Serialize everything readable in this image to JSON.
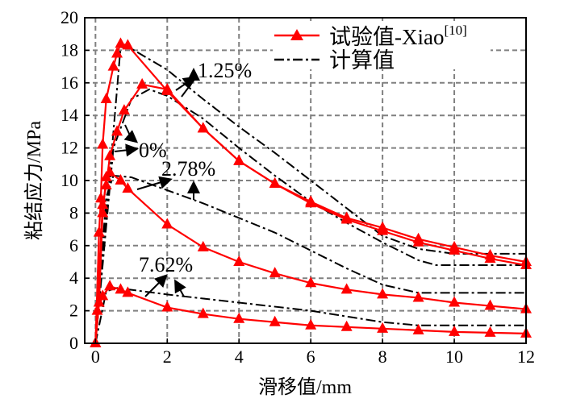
{
  "chart_data": {
    "type": "line",
    "xlabel": "滑移值/mm",
    "ylabel": "粘结应力/MPa",
    "xlim": [
      -0.3,
      12
    ],
    "ylim": [
      0,
      20
    ],
    "xticks": [
      0,
      2,
      4,
      6,
      8,
      10,
      12
    ],
    "yticks": [
      0,
      2,
      4,
      6,
      8,
      10,
      12,
      14,
      16,
      18,
      20
    ],
    "grid": true,
    "legend_position": "top-right",
    "legend": [
      {
        "label": "试验值-Xiao",
        "sup": "[10]",
        "style": "red-line-triangle"
      },
      {
        "label": "计算值",
        "style": "black-dashdot"
      }
    ],
    "colors": {
      "experimental": "#ff0000",
      "calculated": "#000000",
      "grid": "#808080"
    },
    "annotations": [
      "1.25%",
      "0%",
      "2.78%",
      "7.62%"
    ],
    "series": [
      {
        "name": "试验值 A",
        "kind": "experimental",
        "points": [
          [
            0,
            0
          ],
          [
            0.1,
            6.8
          ],
          [
            0.15,
            8.9
          ],
          [
            0.2,
            12.2
          ],
          [
            0.3,
            15
          ],
          [
            0.5,
            17
          ],
          [
            0.6,
            17.8
          ],
          [
            0.7,
            18.4
          ],
          [
            0.9,
            18.3
          ],
          [
            2,
            15.5
          ],
          [
            3,
            13.2
          ],
          [
            4,
            11.2
          ],
          [
            5,
            9.8
          ],
          [
            6,
            8.6
          ],
          [
            7,
            7.6
          ],
          [
            8,
            6.9
          ],
          [
            9,
            6.2
          ],
          [
            10,
            5.7
          ],
          [
            11,
            5.2
          ],
          [
            12,
            4.8
          ]
        ]
      },
      {
        "name": "试验值 B",
        "kind": "experimental",
        "points": [
          [
            0,
            0
          ],
          [
            0.2,
            8.5
          ],
          [
            0.3,
            9.7
          ],
          [
            0.4,
            11.5
          ],
          [
            0.6,
            13
          ],
          [
            0.8,
            14.3
          ],
          [
            1.3,
            15.9
          ],
          [
            2,
            15.6
          ],
          [
            3,
            13.2
          ],
          [
            4,
            11.2
          ],
          [
            5,
            9.8
          ],
          [
            6,
            8.7
          ],
          [
            7,
            7.7
          ],
          [
            8,
            7.1
          ],
          [
            9,
            6.4
          ],
          [
            10,
            5.9
          ],
          [
            11,
            5.4
          ],
          [
            12,
            5.0
          ]
        ]
      },
      {
        "name": "试验值 C",
        "kind": "experimental",
        "points": [
          [
            0,
            0
          ],
          [
            0.1,
            2.5
          ],
          [
            0.2,
            8
          ],
          [
            0.3,
            10.2
          ],
          [
            0.4,
            10.5
          ],
          [
            0.7,
            10
          ],
          [
            0.9,
            9.5
          ],
          [
            2,
            7.3
          ],
          [
            3,
            5.9
          ],
          [
            4,
            5.0
          ],
          [
            5,
            4.3
          ],
          [
            6,
            3.7
          ],
          [
            7,
            3.3
          ],
          [
            8,
            3.0
          ],
          [
            9,
            2.8
          ],
          [
            10,
            2.5
          ],
          [
            11,
            2.3
          ],
          [
            12,
            2.1
          ]
        ]
      },
      {
        "name": "试验值 D",
        "kind": "experimental",
        "points": [
          [
            0,
            0
          ],
          [
            0.05,
            2
          ],
          [
            0.2,
            2.9
          ],
          [
            0.4,
            3.5
          ],
          [
            0.7,
            3.3
          ],
          [
            0.9,
            3.1
          ],
          [
            2,
            2.2
          ],
          [
            3,
            1.8
          ],
          [
            4,
            1.5
          ],
          [
            5,
            1.3
          ],
          [
            6,
            1.1
          ],
          [
            7,
            1.0
          ],
          [
            8,
            0.9
          ],
          [
            9,
            0.8
          ],
          [
            10,
            0.7
          ],
          [
            11,
            0.65
          ],
          [
            12,
            0.6
          ]
        ]
      },
      {
        "name": "计算值 A",
        "kind": "calculated",
        "points": [
          [
            0,
            0
          ],
          [
            0.7,
            18.2
          ],
          [
            1,
            18.1
          ],
          [
            2,
            16.8
          ],
          [
            3,
            15
          ],
          [
            4,
            13.3
          ],
          [
            5,
            11.7
          ],
          [
            6,
            10
          ],
          [
            7,
            8.3
          ],
          [
            8,
            6.6
          ],
          [
            9,
            5.8
          ],
          [
            10,
            5.5
          ],
          [
            11,
            5.5
          ],
          [
            12,
            5.5
          ]
        ]
      },
      {
        "name": "计算值 B",
        "kind": "calculated",
        "points": [
          [
            0,
            0
          ],
          [
            0.5,
            12
          ],
          [
            1,
            15
          ],
          [
            1.5,
            15.6
          ],
          [
            2,
            15.2
          ],
          [
            3,
            13.8
          ],
          [
            4,
            12
          ],
          [
            5,
            10.3
          ],
          [
            6,
            8.7
          ],
          [
            7,
            7.4
          ],
          [
            8,
            6.2
          ],
          [
            9,
            5.1
          ],
          [
            9.5,
            4.8
          ],
          [
            12,
            4.8
          ]
        ]
      },
      {
        "name": "计算值 C",
        "kind": "calculated",
        "points": [
          [
            0,
            0
          ],
          [
            0.3,
            9
          ],
          [
            0.5,
            10.3
          ],
          [
            1,
            10.2
          ],
          [
            2,
            9.4
          ],
          [
            3,
            8.6
          ],
          [
            4,
            7.7
          ],
          [
            5,
            6.8
          ],
          [
            6,
            5.7
          ],
          [
            7,
            4.6
          ],
          [
            8,
            3.6
          ],
          [
            9,
            3.1
          ],
          [
            12,
            3.1
          ]
        ]
      },
      {
        "name": "计算值 D",
        "kind": "calculated",
        "points": [
          [
            0,
            0
          ],
          [
            0.3,
            3.2
          ],
          [
            0.6,
            3.4
          ],
          [
            2,
            3.0
          ],
          [
            4,
            2.5
          ],
          [
            6,
            2.0
          ],
          [
            8,
            1.3
          ],
          [
            9,
            1.1
          ],
          [
            12,
            1.1
          ]
        ]
      }
    ]
  }
}
